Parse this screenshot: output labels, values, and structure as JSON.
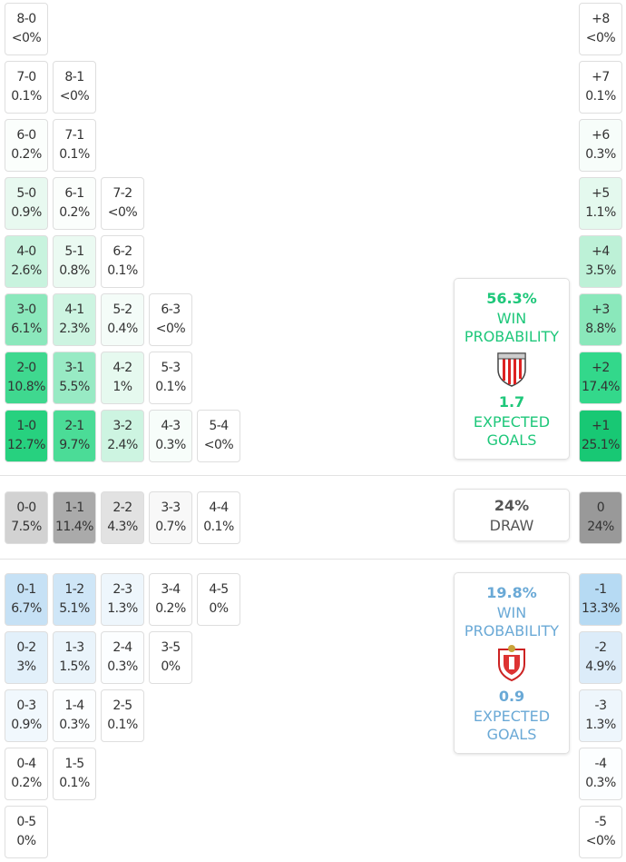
{
  "home": {
    "rows": [
      [
        {
          "score": "8-0",
          "prob": "<0%",
          "color": "#ffffff"
        }
      ],
      [
        {
          "score": "7-0",
          "prob": "0.1%",
          "color": "#ffffff"
        },
        {
          "score": "8-1",
          "prob": "<0%",
          "color": "#ffffff"
        }
      ],
      [
        {
          "score": "6-0",
          "prob": "0.2%",
          "color": "#fbfefc"
        },
        {
          "score": "7-1",
          "prob": "0.1%",
          "color": "#ffffff"
        }
      ],
      [
        {
          "score": "5-0",
          "prob": "0.9%",
          "color": "#e8f9f0"
        },
        {
          "score": "6-1",
          "prob": "0.2%",
          "color": "#fbfefc"
        },
        {
          "score": "7-2",
          "prob": "<0%",
          "color": "#ffffff"
        }
      ],
      [
        {
          "score": "4-0",
          "prob": "2.6%",
          "color": "#c8f3de"
        },
        {
          "score": "5-1",
          "prob": "0.8%",
          "color": "#ebfaf2"
        },
        {
          "score": "6-2",
          "prob": "0.1%",
          "color": "#ffffff"
        }
      ],
      [
        {
          "score": "3-0",
          "prob": "6.1%",
          "color": "#8be8bc"
        },
        {
          "score": "4-1",
          "prob": "2.3%",
          "color": "#cdf4e1"
        },
        {
          "score": "5-2",
          "prob": "0.4%",
          "color": "#f4fcf8"
        },
        {
          "score": "6-3",
          "prob": "<0%",
          "color": "#ffffff"
        }
      ],
      [
        {
          "score": "2-0",
          "prob": "10.8%",
          "color": "#3fd88f"
        },
        {
          "score": "3-1",
          "prob": "5.5%",
          "color": "#98eac4"
        },
        {
          "score": "4-2",
          "prob": "1%",
          "color": "#e6f9ef"
        },
        {
          "score": "5-3",
          "prob": "0.1%",
          "color": "#ffffff"
        }
      ],
      [
        {
          "score": "1-0",
          "prob": "12.7%",
          "color": "#27d17f"
        },
        {
          "score": "2-1",
          "prob": "9.7%",
          "color": "#4bdc97"
        },
        {
          "score": "3-2",
          "prob": "2.4%",
          "color": "#cdf4e1"
        },
        {
          "score": "4-3",
          "prob": "0.3%",
          "color": "#f7fdfa"
        },
        {
          "score": "5-4",
          "prob": "<0%",
          "color": "#ffffff"
        }
      ]
    ],
    "margins": [
      {
        "label": "+8",
        "prob": "<0%",
        "color": "#ffffff"
      },
      {
        "label": "+7",
        "prob": "0.1%",
        "color": "#ffffff"
      },
      {
        "label": "+6",
        "prob": "0.3%",
        "color": "#f7fdfa"
      },
      {
        "label": "+5",
        "prob": "1.1%",
        "color": "#e4f9ee"
      },
      {
        "label": "+4",
        "prob": "3.5%",
        "color": "#bdf1d7"
      },
      {
        "label": "+3",
        "prob": "8.8%",
        "color": "#8ae8bb"
      },
      {
        "label": "+2",
        "prob": "17.4%",
        "color": "#33d88b"
      },
      {
        "label": "+1",
        "prob": "25.1%",
        "color": "#18c874"
      }
    ],
    "panel": {
      "probability": "56.3%",
      "win_label": "WIN PROBABILITY",
      "xg": "1.7",
      "xg_label": "EXPECTED GOALS",
      "color": "#1ec77a"
    }
  },
  "draw": {
    "row": [
      {
        "score": "0-0",
        "prob": "7.5%",
        "color": "#d2d2d2"
      },
      {
        "score": "1-1",
        "prob": "11.4%",
        "color": "#aaaaaa"
      },
      {
        "score": "2-2",
        "prob": "4.3%",
        "color": "#e2e2e2"
      },
      {
        "score": "3-3",
        "prob": "0.7%",
        "color": "#f8f8f8"
      },
      {
        "score": "4-4",
        "prob": "0.1%",
        "color": "#ffffff"
      }
    ],
    "margin": {
      "label": "0",
      "prob": "24%",
      "color": "#999999"
    },
    "panel": {
      "probability": "24%",
      "label": "DRAW",
      "color": "#555555"
    }
  },
  "away": {
    "rows": [
      [
        {
          "score": "0-1",
          "prob": "6.7%",
          "color": "#c6e1f5"
        },
        {
          "score": "1-2",
          "prob": "5.1%",
          "color": "#cfe6f7"
        },
        {
          "score": "2-3",
          "prob": "1.3%",
          "color": "#eef6fc"
        },
        {
          "score": "3-4",
          "prob": "0.2%",
          "color": "#ffffff"
        },
        {
          "score": "4-5",
          "prob": "0%",
          "color": "#ffffff"
        }
      ],
      [
        {
          "score": "0-2",
          "prob": "3%",
          "color": "#e2f0fa"
        },
        {
          "score": "1-3",
          "prob": "1.5%",
          "color": "#eaf4fb"
        },
        {
          "score": "2-4",
          "prob": "0.3%",
          "color": "#fcfeff"
        },
        {
          "score": "3-5",
          "prob": "0%",
          "color": "#ffffff"
        }
      ],
      [
        {
          "score": "0-3",
          "prob": "0.9%",
          "color": "#f1f8fd"
        },
        {
          "score": "1-4",
          "prob": "0.3%",
          "color": "#fcfeff"
        },
        {
          "score": "2-5",
          "prob": "0.1%",
          "color": "#ffffff"
        }
      ],
      [
        {
          "score": "0-4",
          "prob": "0.2%",
          "color": "#ffffff"
        },
        {
          "score": "1-5",
          "prob": "0.1%",
          "color": "#ffffff"
        }
      ],
      [
        {
          "score": "0-5",
          "prob": "0%",
          "color": "#ffffff"
        }
      ]
    ],
    "margins": [
      {
        "label": "-1",
        "prob": "13.3%",
        "color": "#b6daf3"
      },
      {
        "label": "-2",
        "prob": "4.9%",
        "color": "#dcecf9"
      },
      {
        "label": "-3",
        "prob": "1.3%",
        "color": "#eef6fc"
      },
      {
        "label": "-4",
        "prob": "0.3%",
        "color": "#fcfeff"
      },
      {
        "label": "-5",
        "prob": "<0%",
        "color": "#ffffff"
      }
    ],
    "panel": {
      "probability": "19.8%",
      "win_label": "WIN PROBABILITY",
      "xg": "0.9",
      "xg_label": "EXPECTED GOALS",
      "color": "#6aa9d6"
    }
  }
}
